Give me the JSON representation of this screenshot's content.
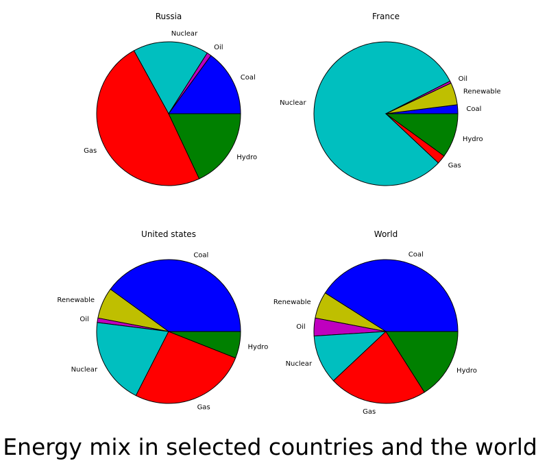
{
  "figure": {
    "title": "Energy mix in selected countries and the world"
  },
  "chart_data": [
    {
      "type": "pie",
      "title": "Russia",
      "labels": [
        "Coal",
        "Oil",
        "Nuclear",
        "Gas",
        "Hydro"
      ],
      "values": [
        15.0,
        1.0,
        17.0,
        49.0,
        18.0
      ],
      "colors": [
        "#0000ff",
        "#bf00bf",
        "#00bfbf",
        "#ff0000",
        "#008000"
      ]
    },
    {
      "type": "pie",
      "title": "France",
      "labels": [
        "Coal",
        "Renewable",
        "Oil",
        "Nuclear",
        "Gas",
        "Hydro"
      ],
      "values": [
        2.0,
        5.0,
        0.5,
        80.5,
        2.0,
        10.0
      ],
      "colors": [
        "#0000ff",
        "#bfbf00",
        "#bf00bf",
        "#00bfbf",
        "#ff0000",
        "#008000"
      ]
    },
    {
      "type": "pie",
      "title": "United states",
      "labels": [
        "Coal",
        "Renewable",
        "Oil",
        "Nuclear",
        "Gas",
        "Hydro"
      ],
      "values": [
        40.0,
        7.0,
        1.0,
        19.5,
        26.5,
        6.0
      ],
      "colors": [
        "#0000ff",
        "#bfbf00",
        "#bf00bf",
        "#00bfbf",
        "#ff0000",
        "#008000"
      ]
    },
    {
      "type": "pie",
      "title": "World",
      "labels": [
        "Coal",
        "Renewable",
        "Oil",
        "Nuclear",
        "Gas",
        "Hydro"
      ],
      "values": [
        41.0,
        6.0,
        4.0,
        11.0,
        22.0,
        16.0
      ],
      "colors": [
        "#0000ff",
        "#bfbf00",
        "#bf00bf",
        "#00bfbf",
        "#ff0000",
        "#008000"
      ]
    }
  ]
}
